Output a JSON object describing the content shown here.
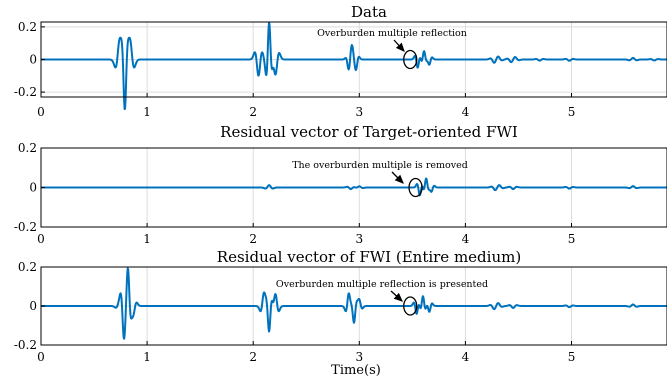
{
  "xlabel": "Time(s)",
  "colors": {
    "line": "#0072BD",
    "annotation": "#000000"
  },
  "chart_data": [
    {
      "type": "line",
      "title": "Data",
      "xlim": [
        0,
        5.9
      ],
      "ylim": [
        -0.23,
        0.23
      ],
      "xticks": [
        0,
        1,
        2,
        3,
        4,
        5
      ],
      "yticks": [
        -0.2,
        0,
        0.2
      ],
      "ytick_labels": [
        "-0.2",
        "0",
        "0.2"
      ],
      "grid": true,
      "annotation": {
        "text": "Overburden multiple reflection",
        "x": 3.48,
        "y": 0.0
      },
      "events": [
        {
          "t": 0.74,
          "a": 0.11,
          "w": 0.022
        },
        {
          "t": 0.84,
          "a": 0.11,
          "w": 0.022
        },
        {
          "t": 0.79,
          "a": -0.24,
          "w": 0.016
        },
        {
          "t": 2.05,
          "a": -0.1,
          "w": 0.02
        },
        {
          "t": 2.15,
          "a": 0.22,
          "w": 0.016
        },
        {
          "t": 2.21,
          "a": -0.09,
          "w": 0.02
        },
        {
          "t": 2.93,
          "a": 0.07,
          "w": 0.018
        },
        {
          "t": 2.9,
          "a": -0.03,
          "w": 0.015
        },
        {
          "t": 2.97,
          "a": -0.04,
          "w": 0.015
        },
        {
          "t": 3.55,
          "a": -0.05,
          "w": 0.015
        },
        {
          "t": 3.61,
          "a": 0.05,
          "w": 0.015
        },
        {
          "t": 3.66,
          "a": -0.03,
          "w": 0.015
        },
        {
          "t": 4.27,
          "a": -0.015,
          "w": 0.02
        },
        {
          "t": 4.31,
          "a": 0.012,
          "w": 0.02
        },
        {
          "t": 4.43,
          "a": -0.012,
          "w": 0.02
        },
        {
          "t": 4.47,
          "a": 0.01,
          "w": 0.02
        },
        {
          "t": 4.7,
          "a": -0.007,
          "w": 0.02
        },
        {
          "t": 4.98,
          "a": -0.008,
          "w": 0.02
        },
        {
          "t": 5.58,
          "a": 0.01,
          "w": 0.02
        },
        {
          "t": 5.78,
          "a": -0.006,
          "w": 0.02
        }
      ]
    },
    {
      "type": "line",
      "title": "Residual vector of Target-oriented FWI",
      "xlim": [
        0,
        5.9
      ],
      "ylim": [
        -0.2,
        0.2
      ],
      "xticks": [
        0,
        1,
        2,
        3,
        4,
        5
      ],
      "yticks": [
        -0.2,
        0,
        0.2
      ],
      "ytick_labels": [
        "-0.2",
        "0",
        "0.2"
      ],
      "grid": true,
      "annotation": {
        "text": "The overburden multiple is removed",
        "x": 3.53,
        "y": 0.0
      },
      "events": [
        {
          "t": 2.15,
          "a": 0.012,
          "w": 0.02
        },
        {
          "t": 2.92,
          "a": -0.008,
          "w": 0.02
        },
        {
          "t": 3.0,
          "a": 0.006,
          "w": 0.02
        },
        {
          "t": 3.57,
          "a": -0.04,
          "w": 0.015
        },
        {
          "t": 3.63,
          "a": 0.045,
          "w": 0.015
        },
        {
          "t": 3.68,
          "a": -0.02,
          "w": 0.015
        },
        {
          "t": 4.28,
          "a": -0.01,
          "w": 0.02
        },
        {
          "t": 4.32,
          "a": 0.008,
          "w": 0.02
        },
        {
          "t": 4.45,
          "a": -0.008,
          "w": 0.02
        },
        {
          "t": 4.98,
          "a": -0.006,
          "w": 0.02
        },
        {
          "t": 5.58,
          "a": 0.007,
          "w": 0.02
        }
      ]
    },
    {
      "type": "line",
      "title": "Residual vector of FWI (Entire medium)",
      "xlim": [
        0,
        5.9
      ],
      "ylim": [
        -0.2,
        0.2
      ],
      "xticks": [
        0,
        1,
        2,
        3,
        4,
        5
      ],
      "yticks": [
        -0.2,
        0,
        0.2
      ],
      "ytick_labels": [
        "-0.2",
        "0",
        "0.2"
      ],
      "grid": true,
      "annotation": {
        "text": "Overburden multiple reflection is presented",
        "x": 3.48,
        "y": 0.0
      },
      "events": [
        {
          "t": 0.74,
          "a": 0.02,
          "w": 0.02
        },
        {
          "t": 0.78,
          "a": -0.12,
          "w": 0.016
        },
        {
          "t": 0.82,
          "a": 0.16,
          "w": 0.016
        },
        {
          "t": 0.87,
          "a": -0.04,
          "w": 0.018
        },
        {
          "t": 2.1,
          "a": 0.06,
          "w": 0.018
        },
        {
          "t": 2.15,
          "a": -0.12,
          "w": 0.016
        },
        {
          "t": 2.21,
          "a": 0.06,
          "w": 0.018
        },
        {
          "t": 2.9,
          "a": 0.06,
          "w": 0.016
        },
        {
          "t": 2.95,
          "a": -0.08,
          "w": 0.016
        },
        {
          "t": 3.0,
          "a": 0.03,
          "w": 0.016
        },
        {
          "t": 3.54,
          "a": -0.04,
          "w": 0.015
        },
        {
          "t": 3.6,
          "a": 0.05,
          "w": 0.015
        },
        {
          "t": 3.66,
          "a": -0.03,
          "w": 0.015
        },
        {
          "t": 4.27,
          "a": -0.012,
          "w": 0.02
        },
        {
          "t": 4.31,
          "a": 0.01,
          "w": 0.02
        },
        {
          "t": 4.45,
          "a": -0.01,
          "w": 0.02
        },
        {
          "t": 4.98,
          "a": -0.006,
          "w": 0.02
        },
        {
          "t": 5.58,
          "a": 0.008,
          "w": 0.02
        }
      ]
    }
  ]
}
